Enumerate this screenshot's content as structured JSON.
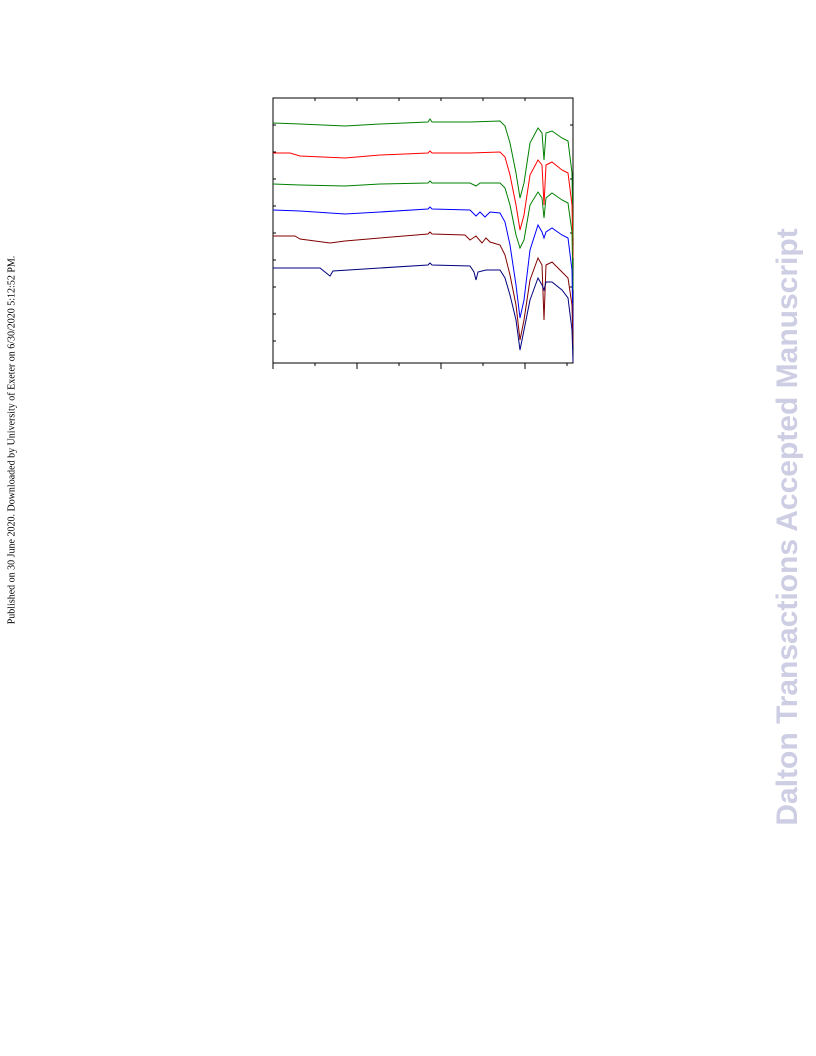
{
  "side_note": "Published on 30 June 2020. Downloaded by University of Exeter on 6/30/2020 5:12:52 PM.",
  "watermark": "Dalton Transactions Accepted Manuscript"
}
